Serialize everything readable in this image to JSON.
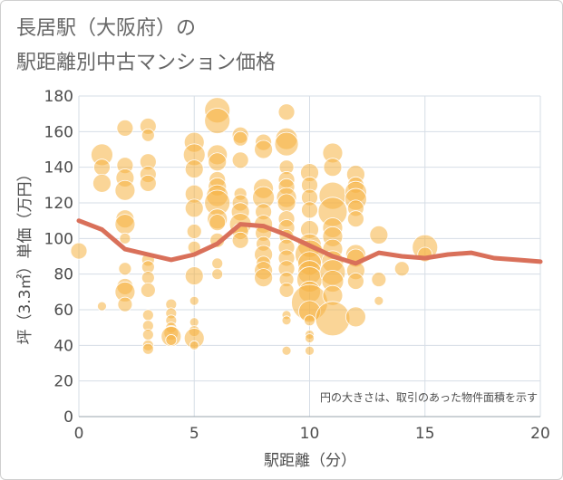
{
  "chart_data": {
    "type": "scatter",
    "title_lines": [
      "長居駅（大阪府）の",
      "駅距離別中古マンション価格"
    ],
    "xlabel": "駅距離（分）",
    "ylabel": "坪（3.3㎡）単価（万円）",
    "note": "円の大きさは、取引のあった物件面積を示す",
    "xlim": [
      0,
      20
    ],
    "ylim": [
      0,
      180
    ],
    "x_ticks": [
      0,
      5,
      10,
      15,
      20
    ],
    "y_ticks": [
      0,
      20,
      40,
      60,
      80,
      100,
      120,
      140,
      160,
      180
    ],
    "grid": true,
    "colors": {
      "bubble": "#f5b342",
      "trend": "#d9705a",
      "grid": "#d6dde6",
      "text": "#4d4d4d"
    },
    "series": [
      {
        "kind": "bubbles",
        "points": [
          {
            "x": 0,
            "y": 93,
            "r": 9
          },
          {
            "x": 1,
            "y": 147,
            "r": 12
          },
          {
            "x": 1,
            "y": 140,
            "r": 9
          },
          {
            "x": 1,
            "y": 131,
            "r": 10
          },
          {
            "x": 1,
            "y": 62,
            "r": 5
          },
          {
            "x": 2,
            "y": 162,
            "r": 9
          },
          {
            "x": 2,
            "y": 141,
            "r": 9
          },
          {
            "x": 2,
            "y": 134,
            "r": 10
          },
          {
            "x": 2,
            "y": 127,
            "r": 11
          },
          {
            "x": 2,
            "y": 111,
            "r": 10
          },
          {
            "x": 2,
            "y": 108,
            "r": 11
          },
          {
            "x": 2,
            "y": 100,
            "r": 6
          },
          {
            "x": 2,
            "y": 83,
            "r": 7
          },
          {
            "x": 2,
            "y": 73,
            "r": 9
          },
          {
            "x": 2,
            "y": 70,
            "r": 11
          },
          {
            "x": 2,
            "y": 63,
            "r": 8
          },
          {
            "x": 3,
            "y": 163,
            "r": 9
          },
          {
            "x": 3,
            "y": 158,
            "r": 7
          },
          {
            "x": 3,
            "y": 143,
            "r": 9
          },
          {
            "x": 3,
            "y": 136,
            "r": 9
          },
          {
            "x": 3,
            "y": 131,
            "r": 9
          },
          {
            "x": 3,
            "y": 88,
            "r": 7
          },
          {
            "x": 3,
            "y": 84,
            "r": 7
          },
          {
            "x": 3,
            "y": 78,
            "r": 7
          },
          {
            "x": 3,
            "y": 71,
            "r": 8
          },
          {
            "x": 3,
            "y": 57,
            "r": 6
          },
          {
            "x": 3,
            "y": 51,
            "r": 6
          },
          {
            "x": 3,
            "y": 46,
            "r": 6
          },
          {
            "x": 3,
            "y": 40,
            "r": 6
          },
          {
            "x": 3,
            "y": 38,
            "r": 6
          },
          {
            "x": 4,
            "y": 63,
            "r": 6
          },
          {
            "x": 4,
            "y": 58,
            "r": 6
          },
          {
            "x": 4,
            "y": 54,
            "r": 6
          },
          {
            "x": 4,
            "y": 50,
            "r": 6
          },
          {
            "x": 4,
            "y": 47,
            "r": 8
          },
          {
            "x": 4,
            "y": 45,
            "r": 11
          },
          {
            "x": 4,
            "y": 43,
            "r": 6
          },
          {
            "x": 5,
            "y": 154,
            "r": 11
          },
          {
            "x": 5,
            "y": 147,
            "r": 12
          },
          {
            "x": 5,
            "y": 139,
            "r": 10
          },
          {
            "x": 5,
            "y": 125,
            "r": 10
          },
          {
            "x": 5,
            "y": 117,
            "r": 10
          },
          {
            "x": 5,
            "y": 104,
            "r": 8
          },
          {
            "x": 5,
            "y": 95,
            "r": 7
          },
          {
            "x": 5,
            "y": 79,
            "r": 10
          },
          {
            "x": 5,
            "y": 65,
            "r": 5
          },
          {
            "x": 5,
            "y": 53,
            "r": 5
          },
          {
            "x": 5,
            "y": 48,
            "r": 6
          },
          {
            "x": 5,
            "y": 44,
            "r": 11
          },
          {
            "x": 5,
            "y": 40,
            "r": 5
          },
          {
            "x": 6,
            "y": 172,
            "r": 14
          },
          {
            "x": 6,
            "y": 166,
            "r": 14
          },
          {
            "x": 6,
            "y": 147,
            "r": 11
          },
          {
            "x": 6,
            "y": 143,
            "r": 10
          },
          {
            "x": 6,
            "y": 133,
            "r": 9
          },
          {
            "x": 6,
            "y": 129,
            "r": 10
          },
          {
            "x": 6,
            "y": 124,
            "r": 12
          },
          {
            "x": 6,
            "y": 120,
            "r": 14
          },
          {
            "x": 6,
            "y": 111,
            "r": 11
          },
          {
            "x": 6,
            "y": 109,
            "r": 9
          },
          {
            "x": 6,
            "y": 99,
            "r": 8
          },
          {
            "x": 6,
            "y": 86,
            "r": 6
          },
          {
            "x": 6,
            "y": 80,
            "r": 6
          },
          {
            "x": 7,
            "y": 158,
            "r": 9
          },
          {
            "x": 7,
            "y": 156,
            "r": 8
          },
          {
            "x": 7,
            "y": 144,
            "r": 9
          },
          {
            "x": 7,
            "y": 125,
            "r": 7
          },
          {
            "x": 7,
            "y": 120,
            "r": 9
          },
          {
            "x": 7,
            "y": 115,
            "r": 10
          },
          {
            "x": 7,
            "y": 108,
            "r": 12
          },
          {
            "x": 7,
            "y": 104,
            "r": 9
          },
          {
            "x": 7,
            "y": 99,
            "r": 9
          },
          {
            "x": 8,
            "y": 154,
            "r": 9
          },
          {
            "x": 8,
            "y": 150,
            "r": 10
          },
          {
            "x": 8,
            "y": 128,
            "r": 11
          },
          {
            "x": 8,
            "y": 123,
            "r": 12
          },
          {
            "x": 8,
            "y": 115,
            "r": 9
          },
          {
            "x": 8,
            "y": 108,
            "r": 10
          },
          {
            "x": 8,
            "y": 103,
            "r": 9
          },
          {
            "x": 8,
            "y": 97,
            "r": 8
          },
          {
            "x": 8,
            "y": 91,
            "r": 10
          },
          {
            "x": 8,
            "y": 86,
            "r": 8
          },
          {
            "x": 8,
            "y": 82,
            "r": 10
          },
          {
            "x": 8,
            "y": 78,
            "r": 10
          },
          {
            "x": 9,
            "y": 171,
            "r": 9
          },
          {
            "x": 9,
            "y": 156,
            "r": 12
          },
          {
            "x": 9,
            "y": 153,
            "r": 13
          },
          {
            "x": 9,
            "y": 140,
            "r": 8
          },
          {
            "x": 9,
            "y": 133,
            "r": 9
          },
          {
            "x": 9,
            "y": 129,
            "r": 9
          },
          {
            "x": 9,
            "y": 123,
            "r": 11
          },
          {
            "x": 9,
            "y": 120,
            "r": 10
          },
          {
            "x": 9,
            "y": 111,
            "r": 9
          },
          {
            "x": 9,
            "y": 106,
            "r": 9
          },
          {
            "x": 9,
            "y": 101,
            "r": 8
          },
          {
            "x": 9,
            "y": 95,
            "r": 9
          },
          {
            "x": 9,
            "y": 89,
            "r": 9
          },
          {
            "x": 9,
            "y": 83,
            "r": 9
          },
          {
            "x": 9,
            "y": 77,
            "r": 8
          },
          {
            "x": 9,
            "y": 71,
            "r": 8
          },
          {
            "x": 9,
            "y": 57,
            "r": 5
          },
          {
            "x": 9,
            "y": 54,
            "r": 5
          },
          {
            "x": 9,
            "y": 37,
            "r": 5
          },
          {
            "x": 10,
            "y": 137,
            "r": 10
          },
          {
            "x": 10,
            "y": 130,
            "r": 9
          },
          {
            "x": 10,
            "y": 123,
            "r": 9
          },
          {
            "x": 10,
            "y": 116,
            "r": 9
          },
          {
            "x": 10,
            "y": 105,
            "r": 10
          },
          {
            "x": 10,
            "y": 96,
            "r": 13
          },
          {
            "x": 10,
            "y": 91,
            "r": 16
          },
          {
            "x": 10,
            "y": 86,
            "r": 13
          },
          {
            "x": 10,
            "y": 81,
            "r": 13
          },
          {
            "x": 10,
            "y": 77,
            "r": 14
          },
          {
            "x": 10,
            "y": 70,
            "r": 12
          },
          {
            "x": 10,
            "y": 64,
            "r": 20
          },
          {
            "x": 10,
            "y": 59,
            "r": 12
          },
          {
            "x": 10,
            "y": 54,
            "r": 6
          },
          {
            "x": 10,
            "y": 46,
            "r": 5
          },
          {
            "x": 10,
            "y": 44,
            "r": 5
          },
          {
            "x": 10,
            "y": 37,
            "r": 5
          },
          {
            "x": 11,
            "y": 148,
            "r": 11
          },
          {
            "x": 11,
            "y": 140,
            "r": 10
          },
          {
            "x": 11,
            "y": 124,
            "r": 15
          },
          {
            "x": 11,
            "y": 115,
            "r": 16
          },
          {
            "x": 11,
            "y": 106,
            "r": 11
          },
          {
            "x": 11,
            "y": 101,
            "r": 11
          },
          {
            "x": 11,
            "y": 94,
            "r": 11
          },
          {
            "x": 11,
            "y": 87,
            "r": 12
          },
          {
            "x": 11,
            "y": 81,
            "r": 14
          },
          {
            "x": 11,
            "y": 76,
            "r": 12
          },
          {
            "x": 11,
            "y": 68,
            "r": 11
          },
          {
            "x": 11,
            "y": 55,
            "r": 19
          },
          {
            "x": 12,
            "y": 136,
            "r": 10
          },
          {
            "x": 12,
            "y": 130,
            "r": 9
          },
          {
            "x": 12,
            "y": 126,
            "r": 12
          },
          {
            "x": 12,
            "y": 122,
            "r": 12
          },
          {
            "x": 12,
            "y": 117,
            "r": 9
          },
          {
            "x": 12,
            "y": 111,
            "r": 9
          },
          {
            "x": 12,
            "y": 91,
            "r": 11
          },
          {
            "x": 12,
            "y": 89,
            "r": 10
          },
          {
            "x": 12,
            "y": 82,
            "r": 10
          },
          {
            "x": 12,
            "y": 76,
            "r": 9
          },
          {
            "x": 12,
            "y": 56,
            "r": 11
          },
          {
            "x": 13,
            "y": 102,
            "r": 10
          },
          {
            "x": 13,
            "y": 77,
            "r": 8
          },
          {
            "x": 13,
            "y": 65,
            "r": 5
          },
          {
            "x": 14,
            "y": 83,
            "r": 8
          },
          {
            "x": 15,
            "y": 95,
            "r": 14
          },
          {
            "x": 15,
            "y": 91,
            "r": 8
          }
        ]
      },
      {
        "kind": "trend_line",
        "x": [
          0,
          1,
          2,
          3,
          4,
          5,
          6,
          7,
          8,
          9,
          10,
          11,
          12,
          13,
          14,
          15,
          16,
          17,
          18,
          19,
          20
        ],
        "y": [
          110,
          105,
          94,
          91,
          88,
          91,
          97,
          108,
          107,
          102,
          96,
          90,
          86,
          92,
          90,
          89,
          91,
          92,
          89,
          88,
          87
        ]
      }
    ]
  }
}
